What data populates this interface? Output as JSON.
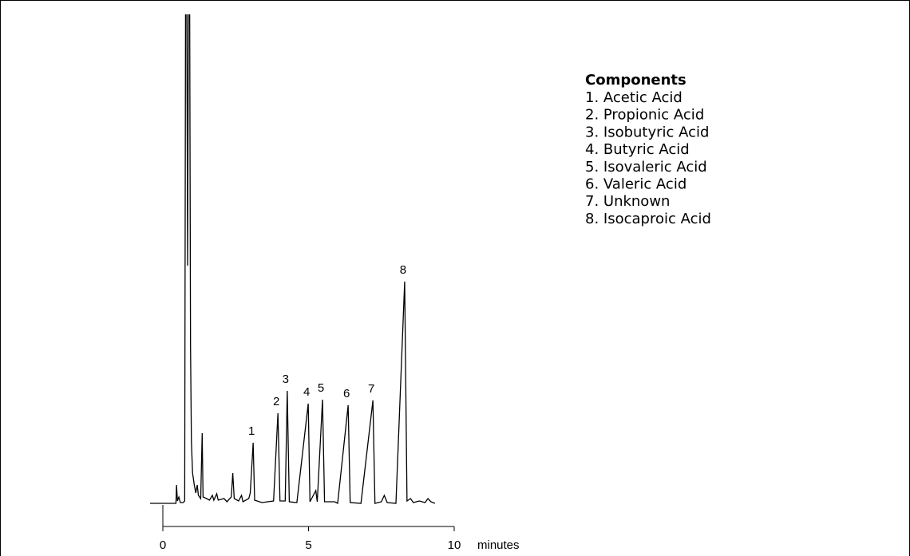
{
  "chart_data": {
    "type": "line",
    "x": [
      -0.44,
      0.4,
      0.45,
      0.47,
      0.5,
      0.55,
      0.6,
      0.7,
      0.75,
      0.78,
      0.82,
      0.85,
      0.88,
      0.92,
      0.95,
      0.98,
      1.02,
      1.08,
      1.13,
      1.18,
      1.22,
      1.3,
      1.35,
      1.38,
      1.5,
      1.6,
      1.7,
      1.75,
      1.85,
      1.9,
      2.1,
      2.2,
      2.35,
      2.4,
      2.45,
      2.6,
      2.7,
      2.75,
      2.95,
      3.0,
      3.1,
      3.15,
      3.4,
      3.8,
      3.95,
      4.02,
      4.2,
      4.27,
      4.34,
      4.6,
      4.99,
      5.05,
      5.25,
      5.3,
      5.48,
      5.55,
      5.9,
      6.0,
      6.36,
      6.43,
      6.8,
      7.21,
      7.28,
      7.5,
      7.6,
      7.7,
      8.0,
      8.3,
      8.38,
      8.5,
      8.6,
      8.8,
      9.0,
      9.1,
      9.2,
      9.34
    ],
    "series": [
      {
        "color": "#000000",
        "values": [
          2,
          2,
          2,
          25,
          5,
          10,
          3,
          3,
          5,
          640,
          640,
          300,
          640,
          640,
          200,
          80,
          40,
          25,
          15,
          25,
          12,
          8,
          90,
          10,
          8,
          6,
          12,
          6,
          14,
          6,
          8,
          4,
          10,
          40,
          8,
          5,
          12,
          4,
          8,
          15,
          78,
          6,
          3,
          5,
          115,
          5,
          5,
          143,
          4,
          3,
          127,
          4,
          18,
          4,
          132,
          4,
          4,
          2,
          125,
          3,
          2,
          131,
          2,
          4,
          12,
          3,
          2,
          280,
          5,
          8,
          3,
          5,
          3,
          8,
          4,
          2
        ]
      }
    ],
    "xlim": [
      0,
      10
    ],
    "xticks": [
      0,
      5,
      10
    ],
    "ylim": [
      0,
      615
    ],
    "xlabel": "minutes",
    "annotations": [
      {
        "text": "1",
        "x": 3.1
      },
      {
        "text": "2",
        "x": 3.95
      },
      {
        "text": "3",
        "x": 4.27
      },
      {
        "text": "4",
        "x": 4.99
      },
      {
        "text": "5",
        "x": 5.48
      },
      {
        "text": "6",
        "x": 6.36
      },
      {
        "text": "7",
        "x": 7.21
      },
      {
        "text": "8",
        "x": 8.3
      }
    ],
    "legend": {
      "title": "Components",
      "items": [
        "1. Acetic Acid",
        "2. Propionic Acid",
        "3. Isobutyric Acid",
        "4. Butyric Acid",
        "5. Isovaleric Acid",
        "6. Valeric Acid",
        "7. Unknown",
        "8. Isocaproic Acid"
      ]
    }
  }
}
